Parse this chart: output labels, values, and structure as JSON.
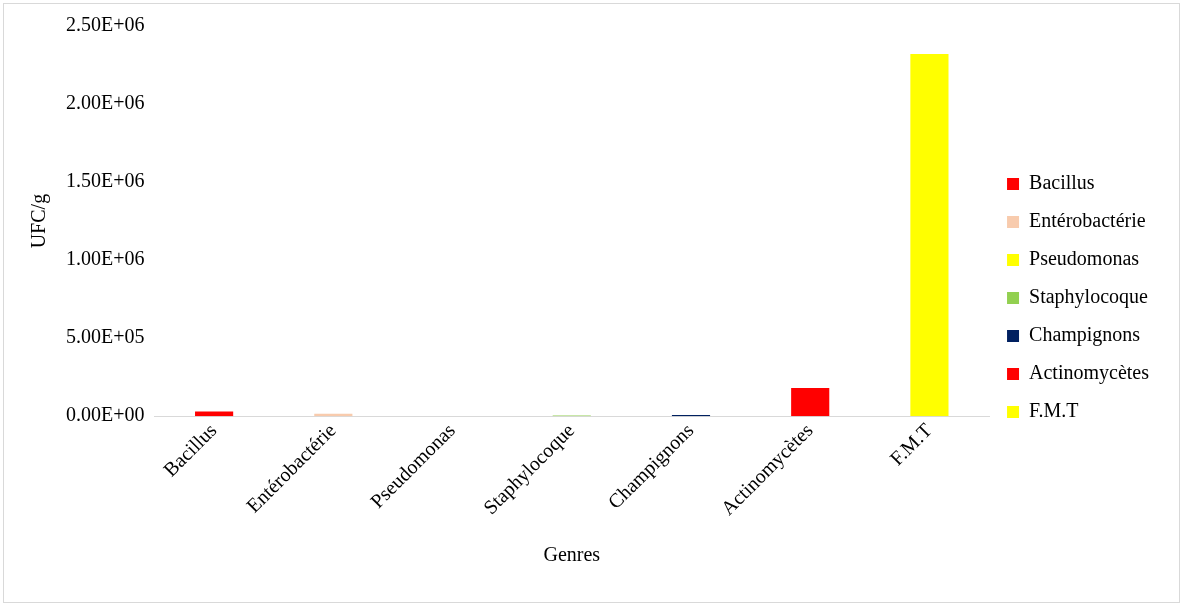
{
  "chart_data": {
    "type": "bar",
    "xlabel": "Genres",
    "ylabel": "UFC/g",
    "categories": [
      "Bacillus",
      "Entérobactérie",
      "Pseudomonas",
      "Staphylocoque",
      "Champignons",
      "Actinomycètes",
      "F.M.T"
    ],
    "series": [
      {
        "name": "Bacillus",
        "color": "#ff0000",
        "values": [
          30000,
          null,
          null,
          null,
          null,
          null,
          null
        ]
      },
      {
        "name": "Entérobactérie",
        "color": "#f8cbad",
        "values": [
          null,
          15000,
          null,
          null,
          null,
          null,
          null
        ]
      },
      {
        "name": "Pseudomonas",
        "color": "#ffff00",
        "values": [
          null,
          null,
          0,
          null,
          null,
          null,
          null
        ]
      },
      {
        "name": "Staphylocoque",
        "color": "#92d050",
        "values": [
          null,
          null,
          null,
          5000,
          null,
          null,
          null
        ]
      },
      {
        "name": "Champignons",
        "color": "#002060",
        "values": [
          null,
          null,
          null,
          null,
          8000,
          null,
          null
        ]
      },
      {
        "name": "Actinomycètes",
        "color": "#ff0000",
        "values": [
          null,
          null,
          null,
          null,
          null,
          180000,
          null
        ]
      },
      {
        "name": "F.M.T",
        "color": "#ffff00",
        "values": [
          null,
          null,
          null,
          null,
          null,
          null,
          2320000
        ]
      }
    ],
    "ylim": [
      0,
      2500000
    ],
    "yticks": [
      {
        "value": 0,
        "label": "0.00E+00"
      },
      {
        "value": 500000,
        "label": "5.00E+05"
      },
      {
        "value": 1000000,
        "label": "1.00E+06"
      },
      {
        "value": 1500000,
        "label": "1.50E+06"
      },
      {
        "value": 2000000,
        "label": "2.00E+06"
      },
      {
        "value": 2500000,
        "label": "2.50E+06"
      }
    ],
    "grid": false,
    "legend": "right"
  }
}
